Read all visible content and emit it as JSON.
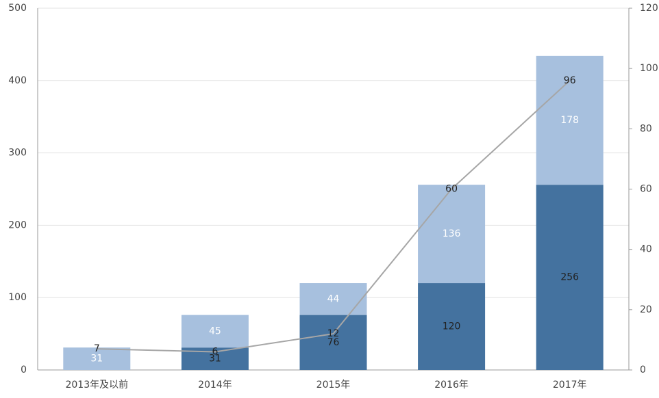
{
  "chart_data": {
    "type": "bar-line",
    "categories": [
      "2013年及以前",
      "2014年",
      "2015年",
      "2016年",
      "2017年"
    ],
    "series": [
      {
        "type": "bar",
        "color": "#44729f",
        "values": [
          null,
          31,
          76,
          120,
          256
        ]
      },
      {
        "type": "bar",
        "color": "#a7c0de",
        "values": [
          31,
          45,
          44,
          136,
          178
        ]
      },
      {
        "type": "line",
        "axis": "y2",
        "color": "#a6a6a6",
        "values": [
          7,
          6,
          12,
          60,
          96
        ]
      }
    ],
    "ylim": [
      0,
      500
    ],
    "yticks": [
      0,
      100,
      200,
      300,
      400,
      500
    ],
    "y2lim": [
      0,
      120
    ],
    "y2ticks": [
      0,
      20,
      40,
      60,
      80,
      100,
      120
    ],
    "grid": true
  }
}
